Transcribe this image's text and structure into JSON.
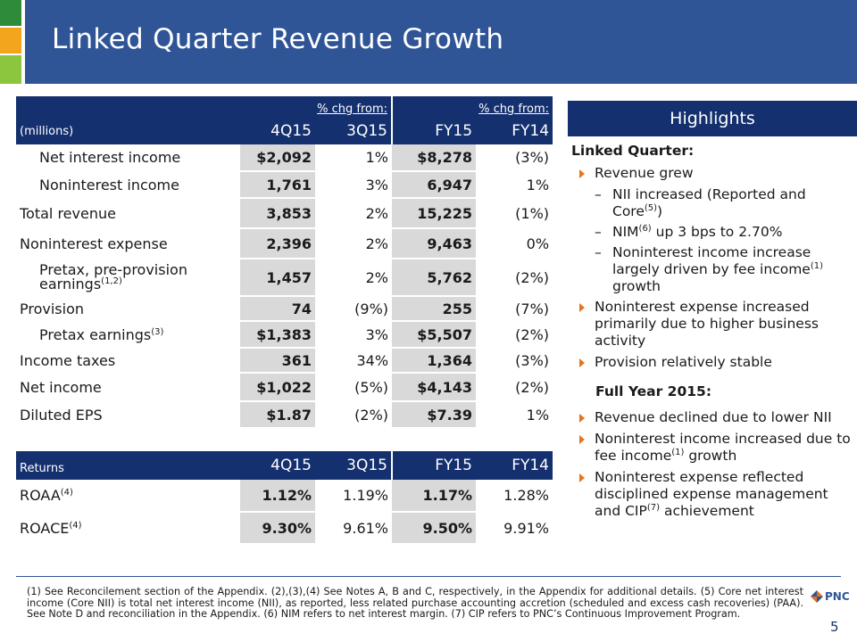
{
  "title": "Linked Quarter Revenue Growth",
  "colors": {
    "header": "#2f5597",
    "table_header": "#14306e",
    "accent": "#e7741d",
    "shade": "#d9d9d9"
  },
  "corner_squares": [
    "#2e8b3a",
    "#f3a51e",
    "#8cc63f",
    "#2f8fd0"
  ],
  "main_table": {
    "chg_label_1": "% chg from:",
    "chg_label_2": "% chg from:",
    "units": "(millions)",
    "columns": [
      "4Q15",
      "3Q15",
      "FY15",
      "FY14"
    ],
    "rows": [
      {
        "label": "Net interest income",
        "sup": "",
        "q": "$2,092",
        "qchg": "1%",
        "fy": "$8,278",
        "fychg": "(3%)"
      },
      {
        "label": "Noninterest income",
        "sup": "",
        "q": "1,761",
        "qchg": "3%",
        "fy": "6,947",
        "fychg": "1%"
      },
      {
        "label": "Total revenue",
        "sup": "",
        "q": "3,853",
        "qchg": "2%",
        "fy": "15,225",
        "fychg": "(1%)"
      },
      {
        "label": "Noninterest expense",
        "sup": "",
        "q": "2,396",
        "qchg": "2%",
        "fy": "9,463",
        "fychg": "0%"
      },
      {
        "label": "Pretax, pre-provision earnings",
        "sup": "(1,2)",
        "q": "1,457",
        "qchg": "2%",
        "fy": "5,762",
        "fychg": "(2%)"
      },
      {
        "label": "Provision",
        "sup": "",
        "q": "74",
        "qchg": "(9%)",
        "fy": "255",
        "fychg": "(7%)"
      },
      {
        "label": "Pretax earnings",
        "sup": "(3)",
        "q": "$1,383",
        "qchg": "3%",
        "fy": "$5,507",
        "fychg": "(2%)"
      },
      {
        "label": "Income taxes",
        "sup": "",
        "q": "361",
        "qchg": "34%",
        "fy": "1,364",
        "fychg": "(3%)"
      },
      {
        "label": "Net income",
        "sup": "",
        "q": "$1,022",
        "qchg": "(5%)",
        "fy": "$4,143",
        "fychg": "(2%)"
      },
      {
        "label": "Diluted EPS",
        "sup": "",
        "q": "$1.87",
        "qchg": "(2%)",
        "fy": "$7.39",
        "fychg": "1%"
      }
    ]
  },
  "returns_table": {
    "label": "Returns",
    "columns": [
      "4Q15",
      "3Q15",
      "FY15",
      "FY14"
    ],
    "rows": [
      {
        "label": "ROAA",
        "sup": "(4)",
        "values": [
          "1.12%",
          "1.19%",
          "1.17%",
          "1.28%"
        ]
      },
      {
        "label": "ROACE",
        "sup": "(4)",
        "values": [
          "9.30%",
          "9.61%",
          "9.50%",
          "9.91%"
        ]
      }
    ]
  },
  "highlights": {
    "title": "Highlights",
    "linked_quarter_heading": "Linked Quarter:",
    "lq_revenue": "Revenue grew",
    "lq_sub1_a": "NII increased (Reported and Core",
    "lq_sub1_sup": "(5)",
    "lq_sub1_b": ")",
    "lq_sub2_a": "NIM",
    "lq_sub2_sup": "(6)",
    "lq_sub2_b": " up 3 bps to 2.70%",
    "lq_sub3_a": "Noninterest income increase largely driven by fee income",
    "lq_sub3_sup": "(1)",
    "lq_sub3_b": " growth",
    "lq_bullet2": "Noninterest expense increased primarily due to higher business activity",
    "lq_bullet3": "Provision relatively stable",
    "full_year_heading": "Full Year 2015:",
    "fy_bullet1": "Revenue declined due to lower NII",
    "fy_bullet2_a": "Noninterest income increased due to fee income",
    "fy_bullet2_sup": "(1)",
    "fy_bullet2_b": " growth",
    "fy_bullet3_a": "Noninterest expense reflected disciplined expense management and CIP",
    "fy_bullet3_sup": "(7)",
    "fy_bullet3_b": " achievement"
  },
  "footnote": "(1) See Reconcilement section of the Appendix. (2),(3),(4) See Notes A, B and C, respectively, in the Appendix for additional details. (5) Core net interest income (Core NII) is total net interest income (NII), as reported, less related purchase accounting accretion (scheduled and excess cash recoveries) (PAA). See Note D and reconciliation in the Appendix. (6) NIM refers to net interest margin. (7) CIP refers to PNC’s Continuous Improvement Program.",
  "logo_text": "PNC",
  "page_number": "5"
}
